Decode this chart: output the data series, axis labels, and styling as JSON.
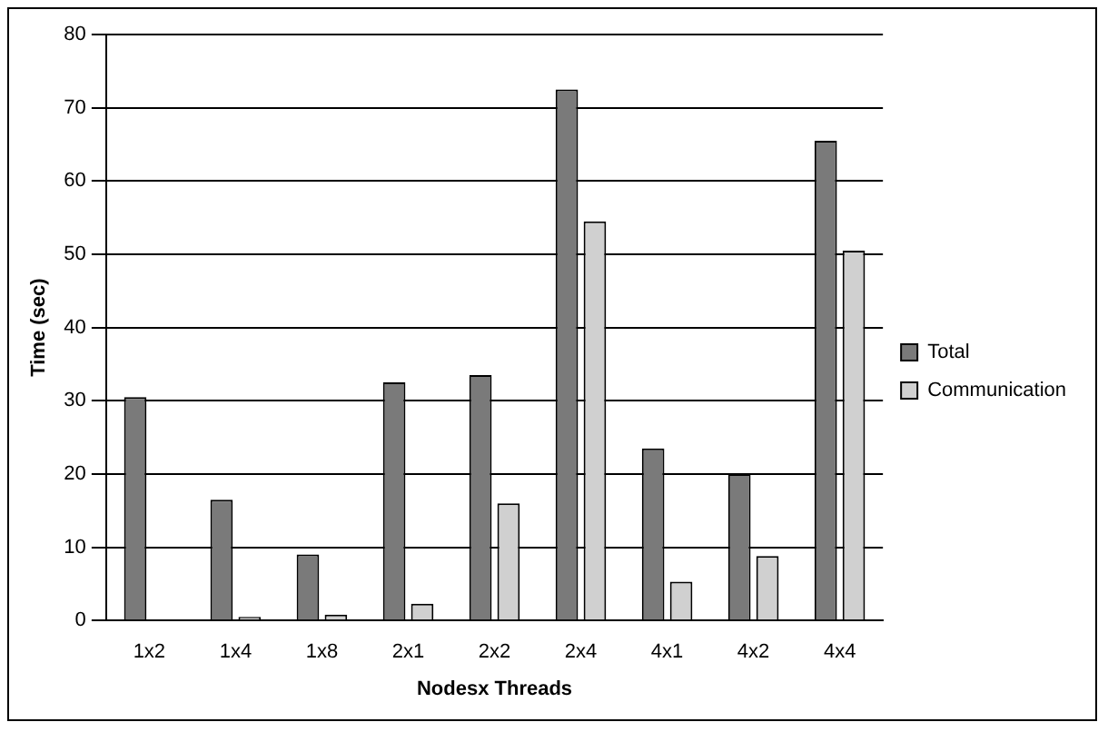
{
  "chart_data": {
    "type": "bar",
    "xlabel": "Nodesx Threads",
    "ylabel": "Time (sec)",
    "categories": [
      "1x2",
      "1x4",
      "1x8",
      "2x1",
      "2x2",
      "2x4",
      "4x1",
      "4x2",
      "4x4"
    ],
    "series": [
      {
        "name": "Total",
        "color": "#7a7a7a",
        "values": [
          30.5,
          16.5,
          9,
          32.5,
          33.5,
          72.5,
          23.5,
          20,
          65.5
        ]
      },
      {
        "name": "Communication",
        "color": "#d0d0d0",
        "values": [
          0,
          0.5,
          0.8,
          2.3,
          16,
          54.5,
          5.3,
          8.8,
          50.5
        ]
      }
    ],
    "ylim": [
      0,
      80
    ],
    "yticks": [
      0,
      10,
      20,
      30,
      40,
      50,
      60,
      70,
      80
    ],
    "grid": "y",
    "legend": "right"
  }
}
